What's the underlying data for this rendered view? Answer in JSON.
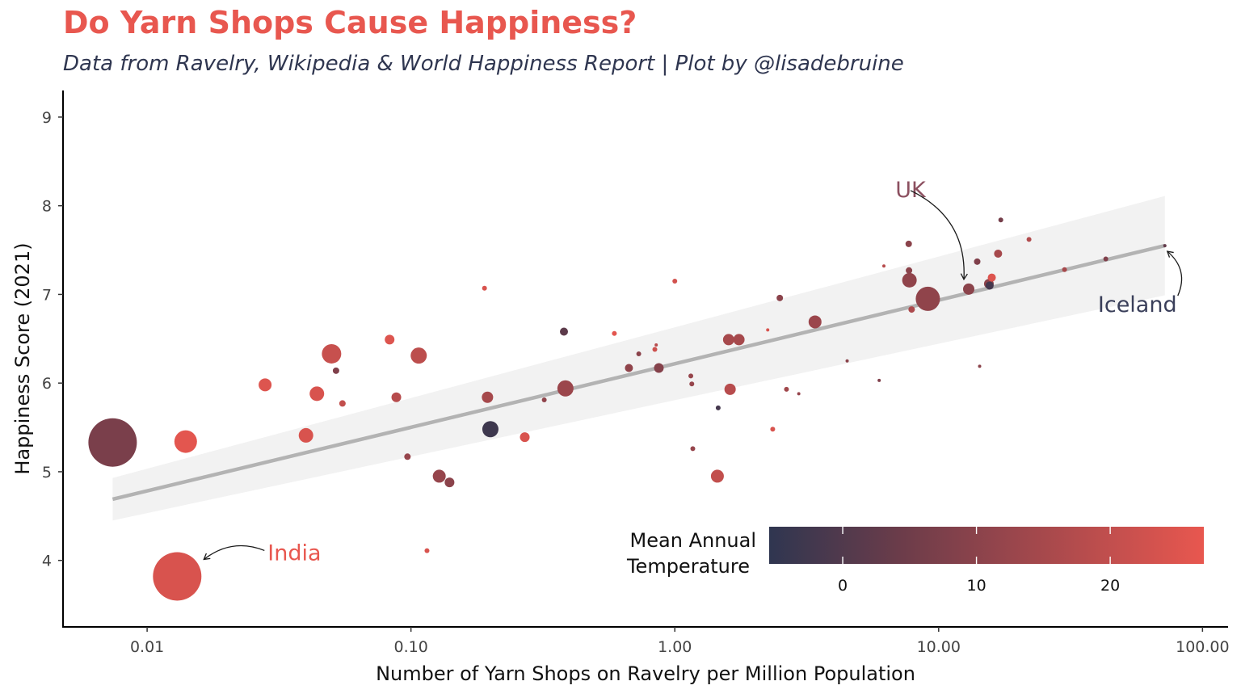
{
  "chart_data": {
    "type": "scatter",
    "title": "Do Yarn Shops Cause Happiness?",
    "subtitle": "Data from Ravelry, Wikipedia & World Happiness Report | Plot by @lisadebruine",
    "xlabel": "Number of Yarn Shops on Ravelry per Million Population",
    "ylabel": "Happiness Score (2021)",
    "x_scale": "log10",
    "xlim": [
      0.0048,
      125
    ],
    "ylim": [
      3.25,
      9.3
    ],
    "x_ticks": [
      0.01,
      0.1,
      1,
      10,
      100
    ],
    "x_tick_labels": [
      "0.01",
      "0.10",
      "1.00",
      "10.00",
      "100.00"
    ],
    "y_ticks": [
      4,
      5,
      6,
      7,
      8,
      9
    ],
    "y_tick_labels": [
      "4",
      "5",
      "6",
      "7",
      "8",
      "9"
    ],
    "grid": false,
    "colors": {
      "low": "#2f3650",
      "high": "#e8574f",
      "trend": "#b3b3b3",
      "band": "#f2f2f2"
    },
    "trend": {
      "x": [
        0.0074,
        72
      ],
      "y": [
        4.69,
        7.55
      ],
      "band_lower": [
        4.45,
        6.99
      ],
      "band_upper": [
        4.93,
        8.11
      ]
    },
    "legend": {
      "title_line1": "Mean Annual",
      "title_line2": "Temperature",
      "position": "bottom-right",
      "range": [
        -5.5,
        27
      ],
      "ticks": [
        0,
        10,
        20
      ],
      "tick_labels": [
        "0",
        "10",
        "20"
      ]
    },
    "annotations": [
      {
        "text": "India",
        "x": 0.013,
        "y": 3.82,
        "color": "#e8574f"
      },
      {
        "text": "UK",
        "x": 13,
        "y": 7.06,
        "color": "#8c5060"
      },
      {
        "text": "Iceland",
        "x": 72,
        "y": 7.55,
        "color": "#3a3f5a"
      }
    ],
    "points": [
      {
        "x": 0.0074,
        "y": 5.33,
        "temp": 7,
        "size": 30
      },
      {
        "x": 0.013,
        "y": 3.82,
        "temp": 24,
        "size": 30
      },
      {
        "x": 0.014,
        "y": 5.34,
        "temp": 26,
        "size": 14
      },
      {
        "x": 0.028,
        "y": 5.98,
        "temp": 25,
        "size": 8
      },
      {
        "x": 0.04,
        "y": 5.41,
        "temp": 24,
        "size": 9
      },
      {
        "x": 0.044,
        "y": 5.88,
        "temp": 24,
        "size": 9
      },
      {
        "x": 0.05,
        "y": 6.33,
        "temp": 21,
        "size": 12
      },
      {
        "x": 0.052,
        "y": 6.14,
        "temp": 8,
        "size": 4
      },
      {
        "x": 0.055,
        "y": 5.77,
        "temp": 20,
        "size": 4
      },
      {
        "x": 0.083,
        "y": 6.49,
        "temp": 25,
        "size": 6
      },
      {
        "x": 0.088,
        "y": 5.84,
        "temp": 18,
        "size": 6
      },
      {
        "x": 0.097,
        "y": 5.17,
        "temp": 12,
        "size": 4
      },
      {
        "x": 0.107,
        "y": 6.31,
        "temp": 19,
        "size": 10
      },
      {
        "x": 0.115,
        "y": 4.11,
        "temp": 24,
        "size": 3
      },
      {
        "x": 0.128,
        "y": 4.95,
        "temp": 12,
        "size": 8
      },
      {
        "x": 0.14,
        "y": 4.88,
        "temp": 10,
        "size": 6
      },
      {
        "x": 0.19,
        "y": 7.07,
        "temp": 24,
        "size": 3
      },
      {
        "x": 0.195,
        "y": 5.84,
        "temp": 15,
        "size": 7
      },
      {
        "x": 0.2,
        "y": 5.48,
        "temp": -3,
        "size": 10
      },
      {
        "x": 0.27,
        "y": 5.39,
        "temp": 24,
        "size": 6
      },
      {
        "x": 0.32,
        "y": 5.81,
        "temp": 11,
        "size": 3
      },
      {
        "x": 0.38,
        "y": 6.58,
        "temp": 2,
        "size": 5
      },
      {
        "x": 0.385,
        "y": 5.94,
        "temp": 13,
        "size": 10
      },
      {
        "x": 0.59,
        "y": 6.56,
        "temp": 26,
        "size": 3
      },
      {
        "x": 0.67,
        "y": 6.17,
        "temp": 11,
        "size": 5
      },
      {
        "x": 0.73,
        "y": 6.33,
        "temp": 10,
        "size": 3
      },
      {
        "x": 0.84,
        "y": 6.38,
        "temp": 22,
        "size": 3
      },
      {
        "x": 0.85,
        "y": 6.43,
        "temp": 18,
        "size": 2
      },
      {
        "x": 0.87,
        "y": 6.17,
        "temp": 9,
        "size": 6
      },
      {
        "x": 1.0,
        "y": 7.15,
        "temp": 23,
        "size": 3
      },
      {
        "x": 1.15,
        "y": 6.08,
        "temp": 12,
        "size": 3
      },
      {
        "x": 1.16,
        "y": 5.99,
        "temp": 12,
        "size": 3
      },
      {
        "x": 1.17,
        "y": 5.26,
        "temp": 12,
        "size": 3
      },
      {
        "x": 1.45,
        "y": 4.95,
        "temp": 20,
        "size": 8
      },
      {
        "x": 1.46,
        "y": 5.72,
        "temp": -2,
        "size": 3
      },
      {
        "x": 1.6,
        "y": 6.49,
        "temp": 15,
        "size": 7
      },
      {
        "x": 1.62,
        "y": 5.93,
        "temp": 18,
        "size": 7
      },
      {
        "x": 1.75,
        "y": 6.49,
        "temp": 15,
        "size": 7
      },
      {
        "x": 2.25,
        "y": 6.6,
        "temp": 24,
        "size": 2
      },
      {
        "x": 2.35,
        "y": 5.48,
        "temp": 24,
        "size": 3
      },
      {
        "x": 2.5,
        "y": 6.96,
        "temp": 10,
        "size": 4
      },
      {
        "x": 2.65,
        "y": 5.93,
        "temp": 14,
        "size": 3
      },
      {
        "x": 2.95,
        "y": 5.88,
        "temp": 12,
        "size": 2
      },
      {
        "x": 3.4,
        "y": 6.69,
        "temp": 13,
        "size": 8
      },
      {
        "x": 4.5,
        "y": 6.25,
        "temp": 10,
        "size": 2
      },
      {
        "x": 5.95,
        "y": 6.03,
        "temp": 8,
        "size": 2
      },
      {
        "x": 6.2,
        "y": 7.32,
        "temp": 18,
        "size": 2
      },
      {
        "x": 7.7,
        "y": 7.57,
        "temp": 10,
        "size": 4
      },
      {
        "x": 7.72,
        "y": 7.27,
        "temp": 10,
        "size": 4
      },
      {
        "x": 7.75,
        "y": 7.16,
        "temp": 11,
        "size": 9
      },
      {
        "x": 7.9,
        "y": 6.83,
        "temp": 16,
        "size": 4
      },
      {
        "x": 9.1,
        "y": 6.95,
        "temp": 11,
        "size": 15
      },
      {
        "x": 13.0,
        "y": 7.06,
        "temp": 10,
        "size": 7
      },
      {
        "x": 14.0,
        "y": 7.37,
        "temp": 8,
        "size": 4
      },
      {
        "x": 14.3,
        "y": 6.19,
        "temp": 10,
        "size": 2
      },
      {
        "x": 15.5,
        "y": 7.12,
        "temp": 10,
        "size": 6
      },
      {
        "x": 15.6,
        "y": 7.1,
        "temp": -2,
        "size": 5
      },
      {
        "x": 15.9,
        "y": 7.19,
        "temp": 25,
        "size": 5
      },
      {
        "x": 16.8,
        "y": 7.46,
        "temp": 15,
        "size": 5
      },
      {
        "x": 17.2,
        "y": 7.84,
        "temp": 6,
        "size": 3
      },
      {
        "x": 22.0,
        "y": 7.62,
        "temp": 17,
        "size": 3
      },
      {
        "x": 30.0,
        "y": 7.28,
        "temp": 15,
        "size": 3
      },
      {
        "x": 43.0,
        "y": 7.4,
        "temp": 8,
        "size": 3
      },
      {
        "x": 72.0,
        "y": 7.55,
        "temp": 3,
        "size": 2
      }
    ]
  }
}
